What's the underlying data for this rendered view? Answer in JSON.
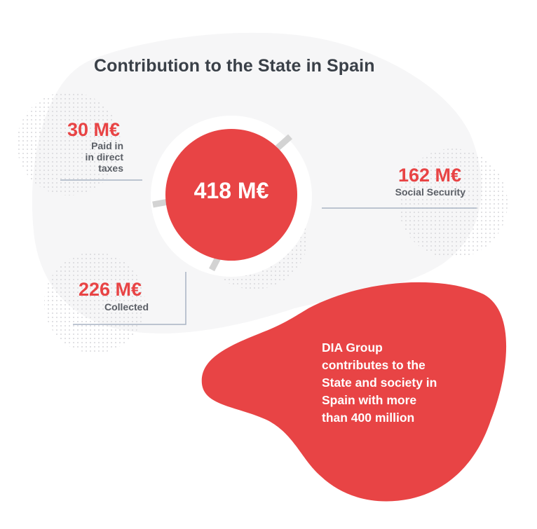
{
  "title": "Contribution to the State in Spain",
  "total": {
    "value": "418 M€"
  },
  "items": [
    {
      "value": "30 M€",
      "label_lines": [
        "Paid in",
        "in direct",
        "taxes"
      ]
    },
    {
      "value": "162 M€",
      "label_lines": [
        "Social Security"
      ]
    },
    {
      "value": "226 M€",
      "label_lines": [
        "Collected"
      ]
    }
  ],
  "message_lines": [
    "DIA Group",
    "contributes to the",
    "State and society in",
    "Spain with more",
    "than 400 million"
  ],
  "colors": {
    "accent_red": "#e84445",
    "title_text": "#3a4048",
    "label_text": "#5b5f66",
    "connector_line": "#a8b4c4",
    "ring_grey": "#d3d3d3",
    "background_blob": "#f6f6f7",
    "dot_pattern": "#d9d9dc"
  }
}
